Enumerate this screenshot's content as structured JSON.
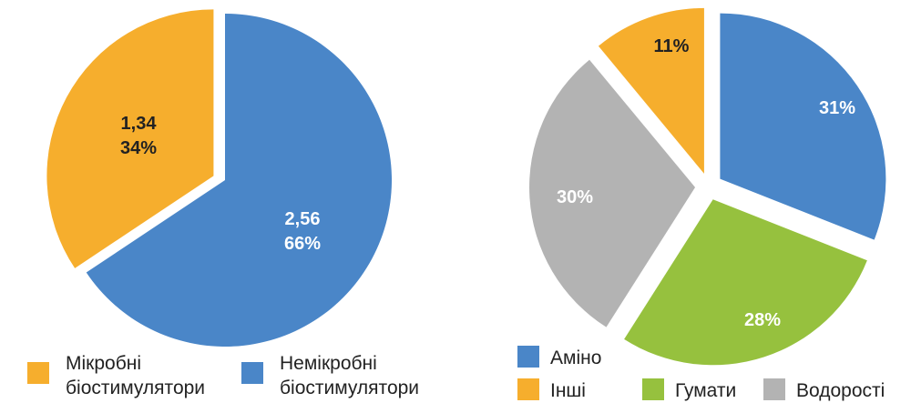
{
  "chart_data": [
    {
      "type": "pie",
      "series": [
        {
          "label_lines": [
            "1,34",
            "34%"
          ],
          "value": 1.34,
          "percent": 34,
          "color": "#F6AE2D",
          "label_color": "#222222",
          "exploded": true
        },
        {
          "label_lines": [
            "2,56",
            "66%"
          ],
          "value": 2.56,
          "percent": 66,
          "color": "#4A86C8",
          "label_color": "#ffffff",
          "exploded": false
        }
      ],
      "legend": [
        {
          "lines": [
            "Мікробні",
            "біостимулятори"
          ],
          "color": "#F6AE2D"
        },
        {
          "lines": [
            "Немікробні",
            "біостимулятори"
          ],
          "color": "#4A86C8"
        }
      ],
      "legend_position": "bottom"
    },
    {
      "type": "pie",
      "series": [
        {
          "name": "Аміно",
          "label": "31%",
          "value": 31,
          "color": "#4A86C8",
          "label_color": "#ffffff"
        },
        {
          "name": "Гумати",
          "label": "28%",
          "value": 28,
          "color": "#96C13E",
          "label_color": "#ffffff"
        },
        {
          "name": "Водорості",
          "label": "30%",
          "value": 30,
          "color": "#B3B3B3",
          "label_color": "#ffffff"
        },
        {
          "name": "Інші",
          "label": "11%",
          "value": 11,
          "color": "#F6AE2D",
          "label_color": "#222222"
        }
      ],
      "legend": [
        {
          "lines": [
            "Аміно"
          ],
          "color": "#4A86C8"
        },
        {
          "lines": [
            "Інші"
          ],
          "color": "#F6AE2D"
        },
        {
          "lines": [
            "Гумати"
          ],
          "color": "#96C13E"
        },
        {
          "lines": [
            "Водорості"
          ],
          "color": "#B3B3B3"
        }
      ],
      "legend_position": "bottom",
      "exploded": "all"
    }
  ]
}
